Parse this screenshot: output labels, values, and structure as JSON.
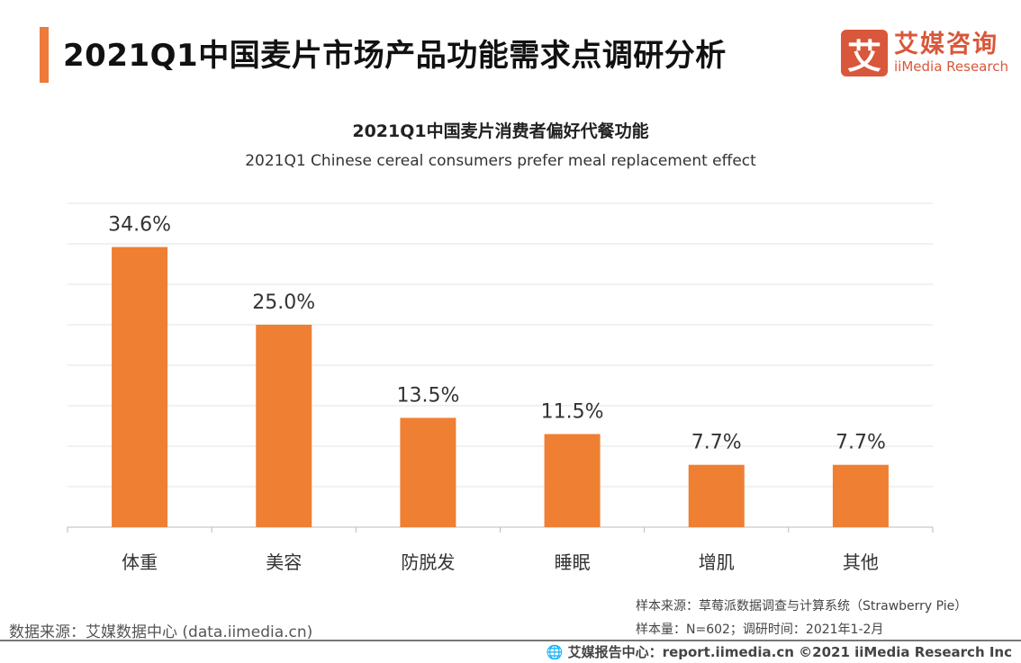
{
  "header": {
    "title": "2021Q1中国麦片市场产品功能需求点调研分析"
  },
  "logo": {
    "mark": "艾",
    "cn": "艾媒咨询",
    "en": "iiMedia Research"
  },
  "chart_data": {
    "type": "bar",
    "title": "2021Q1中国麦片消费者偏好代餐功能",
    "subtitle": "2021Q1 Chinese cereal consumers prefer meal replacement effect",
    "categories": [
      "体重",
      "美容",
      "防脱发",
      "睡眠",
      "增肌",
      "其他"
    ],
    "values": [
      34.6,
      25.0,
      13.5,
      11.5,
      7.7,
      7.7
    ],
    "data_labels": [
      "34.6%",
      "25.0%",
      "13.5%",
      "11.5%",
      "7.7%",
      "7.7%"
    ],
    "ylim": [
      0,
      40
    ],
    "grid": true,
    "bar_color": "#ee7f33"
  },
  "footer": {
    "source": "数据来源：艾媒数据中心 (data.iimedia.cn)",
    "sample_source": "样本来源：草莓派数据调查与计算系统（Strawberry Pie）",
    "sample_size": "样本量：N=602；调研时间：2021年1-2月",
    "copyright": "艾媒报告中心：report.iimedia.cn   ©2021  iiMedia Research  Inc"
  }
}
